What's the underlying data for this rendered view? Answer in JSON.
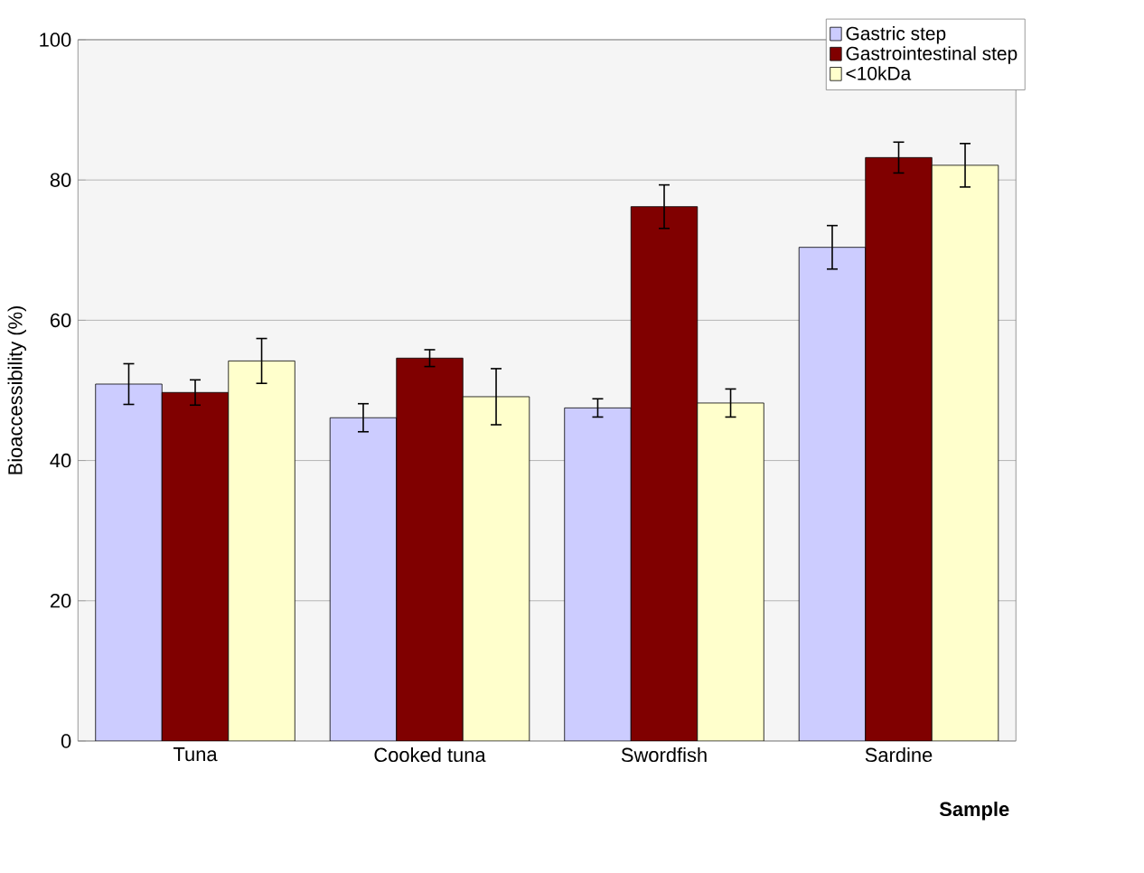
{
  "chart_data": {
    "type": "bar",
    "xlabel": "Sample",
    "ylabel": "Bioaccessibility (%)",
    "categories": [
      "Tuna",
      "Cooked tuna",
      "Swordfish",
      "Sardine"
    ],
    "series": [
      {
        "name": "Gastric step",
        "color": "#ccccff",
        "values": [
          50.9,
          46.1,
          47.5,
          70.4
        ],
        "errors": [
          2.9,
          2.0,
          1.3,
          3.1
        ]
      },
      {
        "name": "Gastrointestinal step",
        "color": "#800000",
        "values": [
          49.7,
          54.6,
          76.2,
          83.2
        ],
        "errors": [
          1.8,
          1.2,
          3.1,
          2.2
        ]
      },
      {
        "name": "<10kDa",
        "color": "#ffffcc",
        "values": [
          54.2,
          49.1,
          48.2,
          82.1
        ],
        "errors": [
          3.2,
          4.0,
          2.0,
          3.1
        ]
      }
    ],
    "ylim": [
      0,
      100
    ],
    "yticks": [
      0,
      20,
      40,
      60,
      80,
      100
    ],
    "grid": "y",
    "legend": "top right"
  }
}
